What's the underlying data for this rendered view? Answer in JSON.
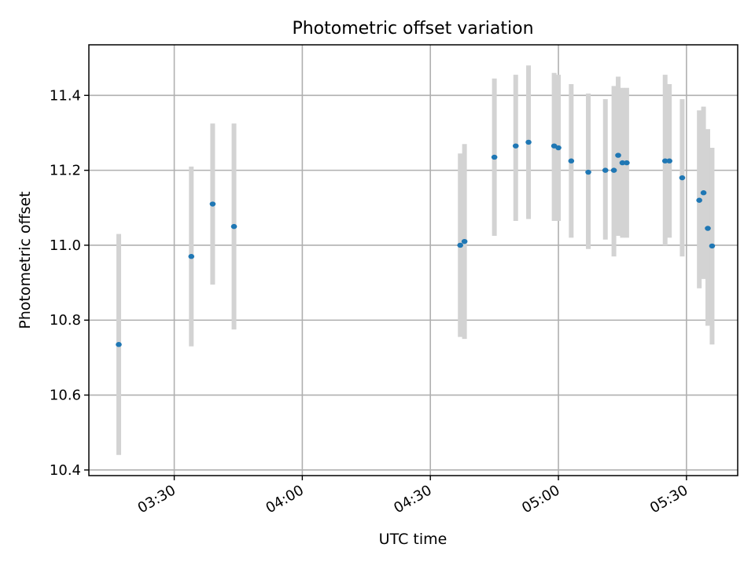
{
  "chart_data": {
    "type": "scatter",
    "title": "Photometric offset variation",
    "xlabel": "UTC time",
    "ylabel": "Photometric offset",
    "x_axis_kind": "time",
    "xlim": [
      "03:10",
      "05:42"
    ],
    "ylim": [
      10.385,
      11.535
    ],
    "x_ticks": [
      "03:30",
      "04:00",
      "04:30",
      "05:00",
      "05:30"
    ],
    "y_ticks": [
      10.4,
      10.6,
      10.8,
      11.0,
      11.2,
      11.4
    ],
    "y_tick_labels": [
      "10.4",
      "10.6",
      "10.8",
      "11.0",
      "11.2",
      "11.4"
    ],
    "grid": true,
    "marker_color": "#1f77b4",
    "errorbar_color": "#d3d3d3",
    "points": [
      {
        "t": "03:17",
        "y": 10.735,
        "lo": 10.44,
        "hi": 11.03
      },
      {
        "t": "03:34",
        "y": 10.97,
        "lo": 10.73,
        "hi": 11.21
      },
      {
        "t": "03:39",
        "y": 11.11,
        "lo": 10.895,
        "hi": 11.325
      },
      {
        "t": "03:44",
        "y": 11.05,
        "lo": 10.775,
        "hi": 11.325
      },
      {
        "t": "04:37",
        "y": 11.0,
        "lo": 10.755,
        "hi": 11.245
      },
      {
        "t": "04:38",
        "y": 11.01,
        "lo": 10.75,
        "hi": 11.27
      },
      {
        "t": "04:45",
        "y": 11.235,
        "lo": 11.025,
        "hi": 11.445
      },
      {
        "t": "04:50",
        "y": 11.265,
        "lo": 11.065,
        "hi": 11.455
      },
      {
        "t": "04:53",
        "y": 11.275,
        "lo": 11.07,
        "hi": 11.48
      },
      {
        "t": "04:59",
        "y": 11.265,
        "lo": 11.065,
        "hi": 11.46
      },
      {
        "t": "05:00",
        "y": 11.26,
        "lo": 11.065,
        "hi": 11.455
      },
      {
        "t": "05:03",
        "y": 11.225,
        "lo": 11.02,
        "hi": 11.43
      },
      {
        "t": "05:07",
        "y": 11.195,
        "lo": 10.99,
        "hi": 11.405
      },
      {
        "t": "05:11",
        "y": 11.2,
        "lo": 11.015,
        "hi": 11.39
      },
      {
        "t": "05:13",
        "y": 11.2,
        "lo": 10.97,
        "hi": 11.425
      },
      {
        "t": "05:14",
        "y": 11.24,
        "lo": 11.025,
        "hi": 11.45
      },
      {
        "t": "05:15",
        "y": 11.22,
        "lo": 11.02,
        "hi": 11.42
      },
      {
        "t": "05:16",
        "y": 11.22,
        "lo": 11.02,
        "hi": 11.42
      },
      {
        "t": "05:25",
        "y": 11.225,
        "lo": 11.0,
        "hi": 11.455
      },
      {
        "t": "05:26",
        "y": 11.225,
        "lo": 11.02,
        "hi": 11.43
      },
      {
        "t": "05:29",
        "y": 11.18,
        "lo": 10.97,
        "hi": 11.39
      },
      {
        "t": "05:33",
        "y": 11.12,
        "lo": 10.885,
        "hi": 11.36
      },
      {
        "t": "05:34",
        "y": 11.14,
        "lo": 10.91,
        "hi": 11.37
      },
      {
        "t": "05:35",
        "y": 11.045,
        "lo": 10.785,
        "hi": 11.31
      },
      {
        "t": "05:36",
        "y": 10.998,
        "lo": 10.735,
        "hi": 11.26
      }
    ]
  }
}
